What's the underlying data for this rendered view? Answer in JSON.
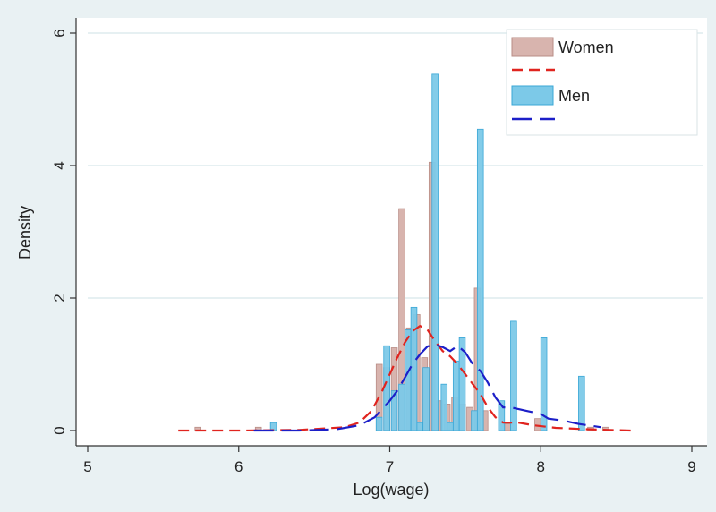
{
  "chart_data": {
    "type": "histogram-with-density",
    "xlabel": "Log(wage)",
    "ylabel": "Density",
    "xlim": [
      5,
      9
    ],
    "ylim": [
      0,
      6
    ],
    "x_ticks": [
      5,
      6,
      7,
      8,
      9
    ],
    "y_ticks": [
      0,
      2,
      4,
      6
    ],
    "grid": "horizontal",
    "legend_position": "top-right",
    "colors": {
      "women_fill": "#d8b4ae",
      "women_stroke": "#b98d86",
      "women_density": "#e0241f",
      "men_fill": "#7cc9e8",
      "men_stroke": "#3aa7d6",
      "men_density": "#1c1fc8"
    },
    "series": [
      {
        "name": "Women",
        "kind": "histogram",
        "bin_width": 0.04,
        "bars": [
          {
            "x": 5.73,
            "y": 0.05
          },
          {
            "x": 6.13,
            "y": 0.05
          },
          {
            "x": 6.93,
            "y": 1.0
          },
          {
            "x": 6.98,
            "y": 0.95
          },
          {
            "x": 7.03,
            "y": 1.25
          },
          {
            "x": 7.08,
            "y": 3.35
          },
          {
            "x": 7.13,
            "y": 1.55
          },
          {
            "x": 7.18,
            "y": 1.75
          },
          {
            "x": 7.23,
            "y": 1.1
          },
          {
            "x": 7.28,
            "y": 4.05
          },
          {
            "x": 7.33,
            "y": 0.45
          },
          {
            "x": 7.38,
            "y": 0.4
          },
          {
            "x": 7.43,
            "y": 0.5
          },
          {
            "x": 7.48,
            "y": 0.4
          },
          {
            "x": 7.53,
            "y": 0.35
          },
          {
            "x": 7.58,
            "y": 2.15
          },
          {
            "x": 7.63,
            "y": 0.3
          },
          {
            "x": 7.78,
            "y": 0.1
          },
          {
            "x": 7.98,
            "y": 0.18
          },
          {
            "x": 8.33,
            "y": 0.05
          },
          {
            "x": 8.43,
            "y": 0.05
          }
        ]
      },
      {
        "name": "",
        "kind": "density",
        "dash": "12,7",
        "points": [
          [
            5.6,
            0.0
          ],
          [
            6.0,
            0.0
          ],
          [
            6.4,
            0.01
          ],
          [
            6.7,
            0.05
          ],
          [
            6.8,
            0.12
          ],
          [
            6.88,
            0.3
          ],
          [
            6.95,
            0.6
          ],
          [
            7.0,
            0.85
          ],
          [
            7.05,
            1.1
          ],
          [
            7.1,
            1.33
          ],
          [
            7.15,
            1.5
          ],
          [
            7.2,
            1.58
          ],
          [
            7.25,
            1.52
          ],
          [
            7.3,
            1.35
          ],
          [
            7.35,
            1.2
          ],
          [
            7.4,
            1.12
          ],
          [
            7.45,
            1.0
          ],
          [
            7.5,
            0.85
          ],
          [
            7.55,
            0.7
          ],
          [
            7.6,
            0.55
          ],
          [
            7.65,
            0.35
          ],
          [
            7.7,
            0.2
          ],
          [
            7.75,
            0.12
          ],
          [
            7.85,
            0.12
          ],
          [
            7.95,
            0.08
          ],
          [
            8.1,
            0.04
          ],
          [
            8.3,
            0.02
          ],
          [
            8.6,
            0.0
          ]
        ]
      },
      {
        "name": "Men",
        "kind": "histogram",
        "bin_width": 0.04,
        "bars": [
          {
            "x": 6.23,
            "y": 0.12
          },
          {
            "x": 6.93,
            "y": 0.2
          },
          {
            "x": 6.98,
            "y": 1.28
          },
          {
            "x": 7.03,
            "y": 0.6
          },
          {
            "x": 7.08,
            "y": 0.7
          },
          {
            "x": 7.12,
            "y": 1.52
          },
          {
            "x": 7.16,
            "y": 1.86
          },
          {
            "x": 7.2,
            "y": 0.12
          },
          {
            "x": 7.24,
            "y": 0.95
          },
          {
            "x": 7.3,
            "y": 5.38
          },
          {
            "x": 7.36,
            "y": 0.7
          },
          {
            "x": 7.4,
            "y": 0.12
          },
          {
            "x": 7.44,
            "y": 1.05
          },
          {
            "x": 7.48,
            "y": 1.4
          },
          {
            "x": 7.56,
            "y": 0.3
          },
          {
            "x": 7.6,
            "y": 4.55
          },
          {
            "x": 7.74,
            "y": 0.45
          },
          {
            "x": 7.82,
            "y": 1.65
          },
          {
            "x": 8.02,
            "y": 1.4
          },
          {
            "x": 8.27,
            "y": 0.82
          }
        ]
      },
      {
        "name": "",
        "kind": "density",
        "dash": "22,9",
        "points": [
          [
            6.1,
            0.0
          ],
          [
            6.4,
            0.0
          ],
          [
            6.65,
            0.02
          ],
          [
            6.8,
            0.08
          ],
          [
            6.9,
            0.2
          ],
          [
            7.0,
            0.45
          ],
          [
            7.05,
            0.6
          ],
          [
            7.1,
            0.8
          ],
          [
            7.15,
            1.0
          ],
          [
            7.2,
            1.15
          ],
          [
            7.25,
            1.27
          ],
          [
            7.3,
            1.3
          ],
          [
            7.35,
            1.26
          ],
          [
            7.4,
            1.2
          ],
          [
            7.45,
            1.28
          ],
          [
            7.5,
            1.18
          ],
          [
            7.55,
            1.0
          ],
          [
            7.6,
            0.9
          ],
          [
            7.65,
            0.72
          ],
          [
            7.7,
            0.5
          ],
          [
            7.75,
            0.35
          ],
          [
            7.8,
            0.35
          ],
          [
            7.9,
            0.3
          ],
          [
            8.0,
            0.25
          ],
          [
            8.05,
            0.18
          ],
          [
            8.15,
            0.15
          ],
          [
            8.25,
            0.1
          ],
          [
            8.4,
            0.05
          ]
        ]
      }
    ],
    "legend": [
      "Women",
      "",
      "Men",
      ""
    ]
  }
}
